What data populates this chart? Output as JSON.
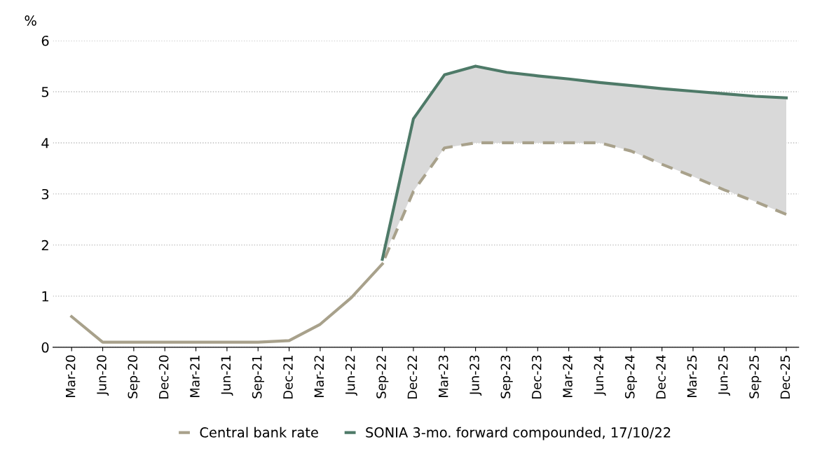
{
  "chart_data": {
    "type": "line",
    "ylabel": "%",
    "categories": [
      "Mar-20",
      "Jun-20",
      "Sep-20",
      "Dec-20",
      "Mar-21",
      "Jun-21",
      "Sep-21",
      "Dec-21",
      "Mar-22",
      "Jun-22",
      "Sep-22",
      "Dec-22",
      "Mar-23",
      "Jun-23",
      "Sep-23",
      "Dec-23",
      "Mar-24",
      "Jun-24",
      "Sep-24",
      "Dec-24",
      "Mar-25",
      "Jun-25",
      "Sep-25",
      "Dec-25"
    ],
    "series": [
      {
        "color": "#a8a18b",
        "line_style": "solid",
        "values": [
          0.6,
          0.1,
          0.1,
          0.1,
          0.1,
          0.1,
          0.1,
          0.13,
          0.45,
          0.97,
          1.63,
          null,
          null,
          null,
          null,
          null,
          null,
          null,
          null,
          null,
          null,
          null,
          null,
          null
        ]
      },
      {
        "name": "Central bank rate",
        "color": "#a8a18b",
        "line_style": "dashed",
        "values": [
          null,
          null,
          null,
          null,
          null,
          null,
          null,
          null,
          null,
          null,
          1.63,
          3.05,
          3.9,
          4.0,
          4.0,
          4.0,
          4.0,
          4.0,
          3.84,
          3.58,
          3.34,
          3.08,
          2.85,
          2.6
        ]
      },
      {
        "name": "SONIA 3-mo. forward compounded, 17/10/22",
        "color": "#4e7a68",
        "line_style": "solid",
        "values": [
          null,
          null,
          null,
          null,
          null,
          null,
          null,
          null,
          null,
          null,
          1.72,
          4.47,
          5.33,
          5.5,
          5.38,
          5.31,
          5.25,
          5.18,
          5.12,
          5.06,
          5.01,
          4.96,
          4.91,
          4.88
        ],
        "lower": [
          null,
          null,
          null,
          null,
          null,
          null,
          null,
          null,
          null,
          null,
          1.72,
          3.05,
          3.9,
          4.0,
          4.0,
          4.0,
          4.0,
          4.0,
          3.84,
          3.58,
          3.34,
          3.08,
          2.85,
          2.6
        ],
        "upper": [
          null,
          null,
          null,
          null,
          null,
          null,
          null,
          null,
          null,
          null,
          1.72,
          4.47,
          5.33,
          5.5,
          5.38,
          5.31,
          5.25,
          5.18,
          5.12,
          5.06,
          5.01,
          4.96,
          4.91,
          4.88
        ]
      }
    ],
    "ylim": [
      0,
      6
    ],
    "yticks": [
      0,
      1,
      2,
      3,
      4,
      5,
      6
    ],
    "grid": "y",
    "legend": "bottom",
    "marker": "none"
  }
}
